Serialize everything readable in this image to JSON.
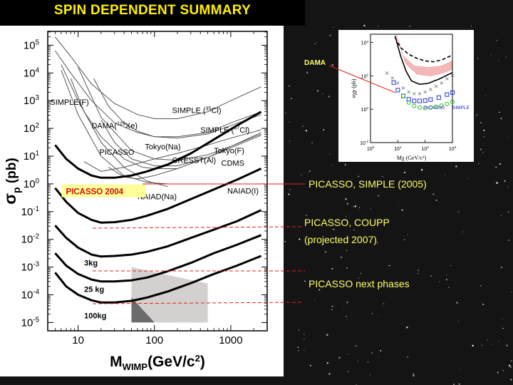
{
  "slide": {
    "title": "SPIN DEPENDENT SUMMARY",
    "annotations": [
      {
        "text": "PICASSO, SIMPLE (2005)"
      },
      {
        "text": "PICASSO, COUPP"
      },
      {
        "text": "(projected 2007)"
      },
      {
        "text": "PICASSO next phases"
      }
    ],
    "dama_label": "DAMA"
  },
  "colors": {
    "title": "#ffee00",
    "annotation_text": "#ffff66",
    "leader_line": "#e0201a",
    "picasso2004_box": "#ffff99",
    "picasso2004_text": "#d01010"
  },
  "chart_data": [
    {
      "type": "line",
      "title": "",
      "xlabel": "MWIMP(GeV/c2)",
      "xlabel_main": "M",
      "xlabel_sub": "WIMP",
      "xlabel_unit": "(GeV/c",
      "xlabel_unit_sup": "2",
      "xlabel_close": ")",
      "ylabel": "σp (pb)",
      "ylabel_main": "σ",
      "ylabel_sub": "p",
      "ylabel_unit": "(pb)",
      "x_scale": "log",
      "y_scale": "log",
      "xlim": [
        4,
        3000
      ],
      "ylim_exp": [
        -5.3,
        5.5
      ],
      "x_ticks": [
        {
          "v": 10,
          "label": "10"
        },
        {
          "v": 100,
          "label": "100"
        },
        {
          "v": 1000,
          "label": "1000"
        }
      ],
      "y_ticks": [
        {
          "exp": -5,
          "label": "10",
          "sup": "-5"
        },
        {
          "exp": -4,
          "label": "10",
          "sup": "-4"
        },
        {
          "exp": -3,
          "label": "10",
          "sup": "-3"
        },
        {
          "exp": -2,
          "label": "10",
          "sup": "-2"
        },
        {
          "exp": -1,
          "label": "10",
          "sup": "-1"
        },
        {
          "exp": 0,
          "label": "10",
          "sup": "0"
        },
        {
          "exp": 1,
          "label": "10",
          "sup": "1"
        },
        {
          "exp": 2,
          "label": "10",
          "sup": "2"
        },
        {
          "exp": 3,
          "label": "10",
          "sup": "3"
        },
        {
          "exp": 4,
          "label": "10",
          "sup": "4"
        },
        {
          "exp": 5,
          "label": "10",
          "sup": "5"
        }
      ],
      "grid": false,
      "series": [
        {
          "name": "SIMPLE (35Cl)",
          "style": "thin",
          "x": [
            5,
            8,
            15,
            30,
            60,
            100,
            200,
            500,
            1000,
            2500
          ],
          "y_exp": [
            5.3,
            4.6,
            3.6,
            2.9,
            2.5,
            2.35,
            2.35,
            2.6,
            3.0,
            3.5
          ]
        },
        {
          "name": "SIMPLE (37Cl)",
          "style": "thin",
          "x": [
            5,
            8,
            15,
            30,
            60,
            100,
            200,
            500,
            1000,
            2500
          ],
          "y_exp": [
            4.8,
            4.0,
            3.0,
            2.2,
            1.85,
            1.7,
            1.7,
            1.85,
            2.2,
            2.6
          ]
        },
        {
          "name": "SIMPLE(F)",
          "style": "thin",
          "x": [
            8,
            12,
            20,
            40,
            70,
            100,
            200
          ],
          "y_exp": [
            3.8,
            2.6,
            1.7,
            0.9,
            0.6,
            0.55,
            0.55
          ]
        },
        {
          "name": "DAMA(129Xe)",
          "style": "thin",
          "x": [
            16,
            25,
            40,
            60,
            100,
            200,
            500,
            1000,
            2500
          ],
          "y_exp": [
            3.8,
            2.8,
            2.2,
            1.9,
            1.7,
            1.65,
            1.8,
            2.1,
            2.5
          ]
        },
        {
          "name": "Tokyo(Na)",
          "style": "thin",
          "x": [
            6,
            10,
            20,
            40,
            80,
            150
          ],
          "y_exp": [
            4.3,
            3.0,
            1.5,
            0.6,
            0.1,
            -0.1
          ]
        },
        {
          "name": "Tokyo(F)",
          "style": "thin",
          "x": [
            10,
            20,
            50,
            100,
            200,
            500,
            1000,
            2500
          ],
          "y_exp": [
            4.2,
            2.4,
            1.2,
            0.9,
            0.85,
            1.05,
            1.35,
            1.8
          ]
        },
        {
          "name": "CRESST(Al)",
          "style": "thin",
          "x": [
            6,
            10,
            20,
            40,
            80,
            150
          ],
          "y_exp": [
            4.1,
            2.5,
            1.0,
            0.3,
            0.05,
            0.0
          ]
        },
        {
          "name": "CDMS",
          "style": "thin",
          "x": [
            20,
            30,
            50,
            100,
            200,
            500,
            1000,
            2500
          ],
          "y_exp": [
            2.3,
            1.5,
            0.9,
            0.65,
            0.65,
            0.95,
            1.35,
            1.85
          ]
        },
        {
          "name": "NAIAD(I)",
          "style": "thin",
          "x": [
            25,
            40,
            60,
            100,
            200,
            500,
            1000,
            2500
          ],
          "y_exp": [
            0.6,
            0.25,
            0.18,
            0.3,
            0.55,
            0.95,
            1.3,
            1.75
          ]
        },
        {
          "name": "NAIAD(Na)",
          "style": "thin",
          "x": [
            12,
            20,
            40,
            100,
            200,
            500,
            1000,
            2500
          ],
          "y_exp": [
            0.8,
            0.45,
            0.6,
            0.9,
            1.1,
            1.4,
            1.65,
            1.95
          ]
        },
        {
          "name": "PICASSO 2004",
          "style": "thick",
          "x": [
            5,
            7,
            10,
            15,
            20,
            30,
            50,
            80,
            150,
            300,
            600,
            1200,
            2500
          ],
          "y_exp": [
            1.4,
            0.9,
            0.55,
            0.3,
            0.22,
            0.22,
            0.3,
            0.45,
            0.7,
            1.1,
            1.6,
            2.1,
            2.6
          ]
        },
        {
          "name": "PICASSO, SIMPLE (2005)",
          "style": "thick",
          "x": [
            5,
            7,
            10,
            15,
            20,
            30,
            50,
            80,
            150,
            300,
            600,
            1200,
            2500
          ],
          "y_exp": [
            -0.15,
            -0.65,
            -1.05,
            -1.3,
            -1.4,
            -1.38,
            -1.3,
            -1.15,
            -0.9,
            -0.55,
            -0.2,
            0.15,
            0.55
          ]
        },
        {
          "name": "PICASSO, COUPP (3kg)",
          "style": "thick",
          "x": [
            5,
            7,
            10,
            15,
            20,
            30,
            50,
            80,
            150,
            300,
            600,
            1200,
            2500
          ],
          "y_exp": [
            -1.5,
            -1.95,
            -2.3,
            -2.55,
            -2.62,
            -2.6,
            -2.55,
            -2.45,
            -2.25,
            -1.95,
            -1.65,
            -1.35,
            -0.95
          ]
        },
        {
          "name": "25 kg",
          "style": "thick",
          "x": [
            5,
            7,
            10,
            15,
            20,
            30,
            50,
            80,
            150,
            300,
            600,
            1200,
            2500
          ],
          "y_exp": [
            -2.5,
            -2.95,
            -3.25,
            -3.45,
            -3.52,
            -3.52,
            -3.48,
            -3.38,
            -3.15,
            -2.85,
            -2.5,
            -2.2,
            -1.85
          ]
        },
        {
          "name": "100kg",
          "style": "thick",
          "x": [
            5,
            7,
            10,
            15,
            20,
            30,
            50,
            80,
            150,
            300,
            600,
            1200,
            2500
          ],
          "y_exp": [
            -3.2,
            -3.7,
            -4.0,
            -4.2,
            -4.28,
            -4.28,
            -4.22,
            -4.1,
            -3.88,
            -3.58,
            -3.25,
            -2.95,
            -2.6
          ]
        }
      ],
      "regions": [
        {
          "name": "SUSY region light",
          "color": "#d4d0d0",
          "x": [
            50,
            500,
            500,
            50
          ],
          "y_exp": [
            -3.0,
            -3.6,
            -5.0,
            -5.0
          ]
        },
        {
          "name": "SUSY region dark",
          "color": "#6c6c6c",
          "x": [
            50,
            100,
            50
          ],
          "y_exp": [
            -4.1,
            -5.0,
            -5.0
          ]
        }
      ],
      "curve_labels": [
        {
          "text": "SIMPLE (",
          "sup": "35",
          "after": "Cl)",
          "x": 170,
          "y_exp": 2.55
        },
        {
          "text": "SIMPLE (",
          "sup": "37",
          "after": "Cl)",
          "x": 400,
          "y_exp": 1.85
        },
        {
          "text": "SIMPLE(F)",
          "sup": "",
          "after": "",
          "x": 4.3,
          "y_exp": 2.85
        },
        {
          "text": "DAMA(",
          "sup": "129",
          "after": "Xe)",
          "x": 15,
          "y_exp": 2.0
        },
        {
          "text": "Tokyo(Na)",
          "sup": "",
          "after": "",
          "x": 75,
          "y_exp": 1.25
        },
        {
          "text": "Tokyo(F)",
          "sup": "",
          "after": "",
          "x": 600,
          "y_exp": 1.1
        },
        {
          "text": "CDMS",
          "sup": "",
          "after": "",
          "x": 750,
          "y_exp": 0.65
        },
        {
          "text": "PICASSO",
          "sup": "",
          "after": "",
          "x": 19,
          "y_exp": 1.05
        },
        {
          "text": "CRESST(Al)",
          "sup": "",
          "after": "",
          "x": 170,
          "y_exp": 0.75
        },
        {
          "text": "NAIAD(I)",
          "sup": "",
          "after": "",
          "x": 900,
          "y_exp": -0.35
        },
        {
          "text": "NAIAD(Na)",
          "sup": "",
          "after": "",
          "x": 60,
          "y_exp": -0.55
        },
        {
          "text": "3kg",
          "sup": "",
          "after": "",
          "x": 12,
          "y_exp": -2.95
        },
        {
          "text": "25 kg",
          "sup": "",
          "after": "",
          "x": 12,
          "y_exp": -3.9
        },
        {
          "text": "100kg",
          "sup": "",
          "after": "",
          "x": 12,
          "y_exp": -4.85
        }
      ],
      "boxed_label": {
        "text": "PICASSO 2004",
        "x": 4.5,
        "y_exp": -0.33
      }
    },
    {
      "type": "line",
      "title": "",
      "xlabel": "Mχ (GeV/c²)",
      "ylabel": "σχp (pb)",
      "x_scale": "log",
      "y_scale": "log",
      "xlim_exp": [
        0,
        3
      ],
      "ylim_exp": [
        -2,
        4.5
      ],
      "x_ticks": [
        {
          "exp": 0,
          "label": "10",
          "sup": "0"
        },
        {
          "exp": 1,
          "label": "10",
          "sup": "1"
        },
        {
          "exp": 2,
          "label": "10",
          "sup": "2"
        },
        {
          "exp": 3,
          "label": "10",
          "sup": "3"
        }
      ],
      "y_ticks": [
        {
          "exp": -2,
          "label": "10",
          "sup": "-2"
        },
        {
          "exp": 0,
          "label": "10",
          "sup": "0"
        },
        {
          "exp": 2,
          "label": "10",
          "sup": "2"
        },
        {
          "exp": 4,
          "label": "10",
          "sup": "4"
        }
      ],
      "grid": false,
      "series": [
        {
          "name": "dashed",
          "style": "dash",
          "x_exp": [
            0.9,
            1.1,
            1.4,
            1.7,
            2.0,
            2.3,
            2.6,
            3.0
          ],
          "y_exp": [
            4.3,
            3.7,
            3.3,
            3.05,
            2.9,
            2.85,
            2.95,
            3.25
          ]
        },
        {
          "name": "solid",
          "style": "solid",
          "x_exp": [
            0.9,
            1.1,
            1.3,
            1.5,
            1.8,
            2.1,
            2.5,
            3.0
          ],
          "y_exp": [
            4.4,
            3.2,
            2.3,
            1.7,
            1.5,
            1.55,
            1.8,
            2.2
          ]
        },
        {
          "name": "PICASSO",
          "style": "blue-squares",
          "x_exp": [
            0.85,
            1.0,
            1.2,
            1.4,
            1.6,
            1.8,
            2.0,
            2.2,
            2.5,
            2.8,
            3.0
          ],
          "y_exp": [
            1.6,
            1.15,
            0.8,
            0.6,
            0.5,
            0.5,
            0.52,
            0.58,
            0.7,
            0.88,
            1.0
          ]
        },
        {
          "name": "SIMPLE",
          "style": "green-circles",
          "x_exp": [
            1.2,
            1.4,
            1.6,
            1.8,
            2.0,
            2.2,
            2.4,
            2.6,
            2.8,
            3.0
          ],
          "y_exp": [
            0.8,
            0.4,
            0.2,
            0.1,
            0.08,
            0.1,
            0.15,
            0.22,
            0.32,
            0.45
          ]
        },
        {
          "name": "stars",
          "style": "grey-stars",
          "x_exp": [
            0.6,
            0.8,
            1.0,
            1.2,
            1.4,
            1.6,
            1.8,
            2.0,
            2.2,
            2.4,
            2.6,
            2.8,
            3.0
          ],
          "y_exp": [
            2.2,
            1.9,
            1.6,
            1.3,
            1.05,
            0.95,
            0.95,
            1.05,
            1.2,
            1.4,
            1.6,
            1.85,
            2.05
          ]
        }
      ],
      "regions": [
        {
          "name": "DAMA",
          "color": "#f4b8b8",
          "x_exp": [
            0.95,
            1.3,
            1.7,
            2.2,
            2.7,
            3.0,
            3.0,
            2.6,
            2.1,
            1.6,
            1.2,
            0.95
          ],
          "y_exp": [
            4.5,
            2.7,
            2.1,
            2.0,
            2.2,
            2.4,
            2.9,
            2.6,
            2.5,
            2.6,
            3.2,
            4.5
          ]
        }
      ],
      "legend_labels": [
        {
          "text": "PICASSO",
          "color": "#2222cc"
        },
        {
          "text": "SIMPLE",
          "color": "#2222cc"
        }
      ]
    }
  ]
}
